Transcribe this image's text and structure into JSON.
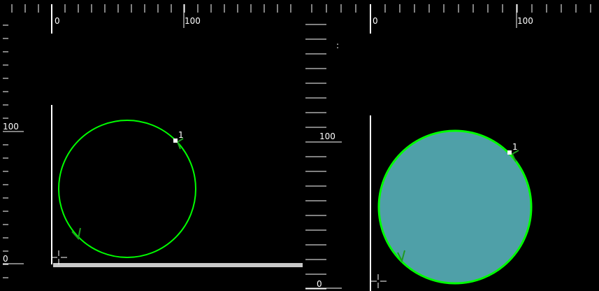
{
  "colors": {
    "background": "#000000",
    "ruler": "#ffffff",
    "circle_stroke": "#00ff00",
    "circle_fill": "#4fa0a8",
    "start_point": "#ffffff",
    "direction_arrow": "#1f9a1f",
    "ground_bar": "#c8c8c8"
  },
  "views": [
    {
      "name": "outline-view",
      "ruler_top": {
        "labels": [
          "0",
          "100"
        ]
      },
      "ruler_left": {
        "labels": [
          "100",
          "0"
        ]
      },
      "shape": {
        "type": "circle",
        "filled": false,
        "point_label": "1"
      },
      "icons": [
        "origin-crosshair-icon",
        "direction-arrow-icon"
      ]
    },
    {
      "name": "filled-view",
      "ruler_top": {
        "labels": [
          "0",
          "100"
        ]
      },
      "ruler_left": {
        "labels": [
          "100",
          "0"
        ]
      },
      "shape": {
        "type": "circle",
        "filled": true,
        "point_label": "1"
      },
      "icons": [
        "origin-crosshair-icon",
        "direction-arrow-icon"
      ]
    }
  ]
}
